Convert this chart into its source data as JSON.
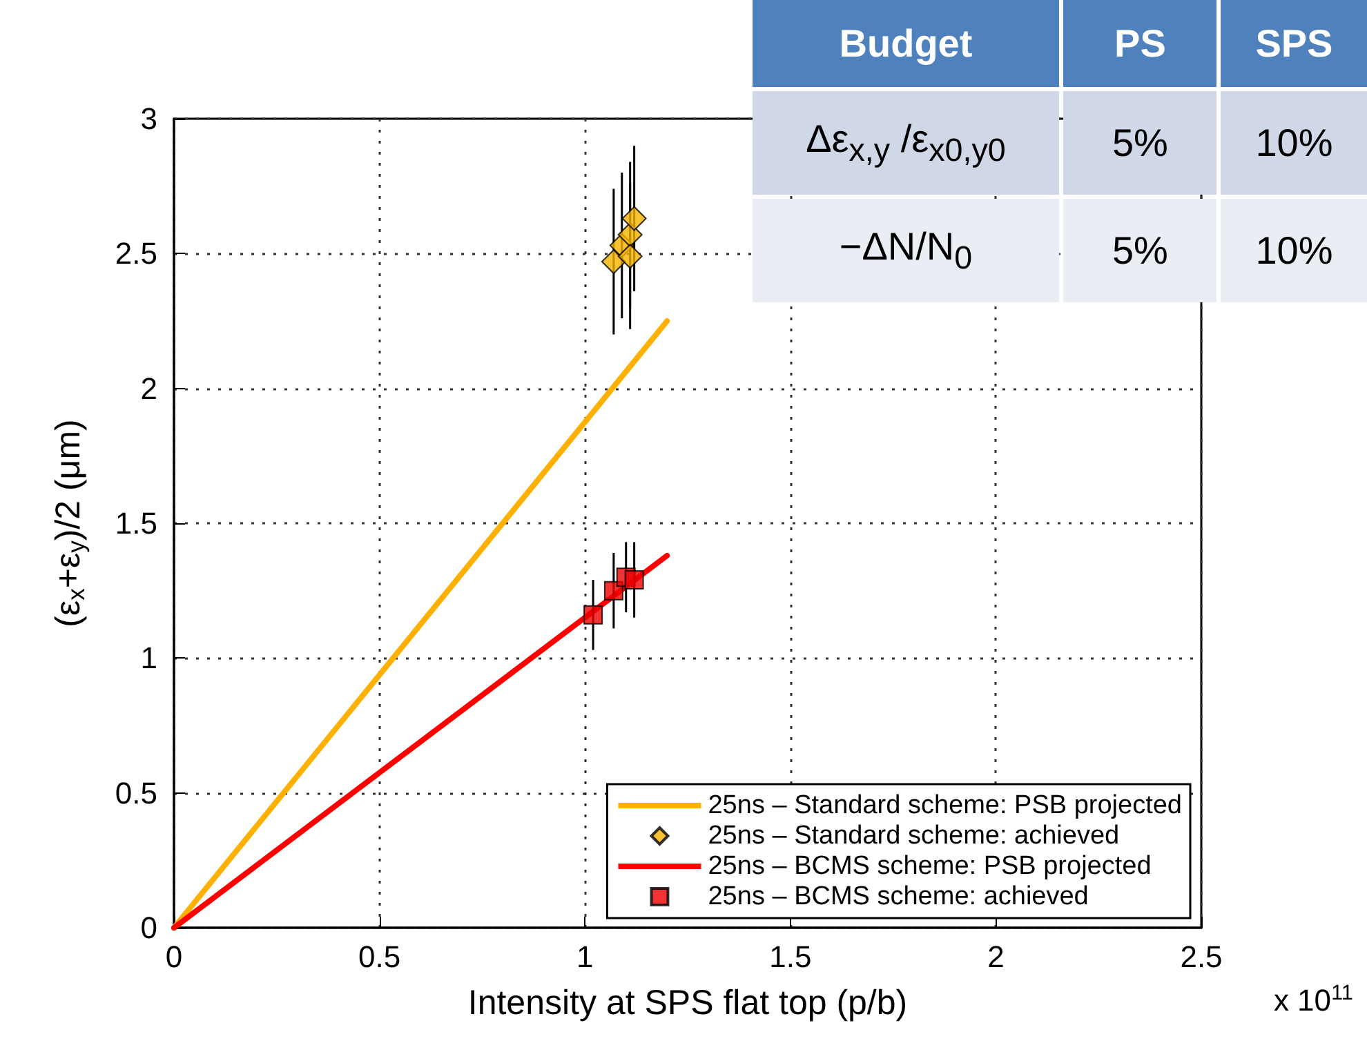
{
  "chart_data": [
    {
      "type": "scatter",
      "xlabel": "Intensity at SPS flat top (p/b)",
      "ylabel": "(ε$_{x}$+ε$_{y}$)/2 (μm)",
      "annotations": [
        "x 10$^{11}$"
      ],
      "xlim": [
        0,
        2.5
      ],
      "xticks": [
        0,
        0.5,
        1,
        1.5,
        2,
        2.5
      ],
      "ylim": [
        0,
        3
      ],
      "yticks": [
        0,
        0.5,
        1,
        1.5,
        2,
        2.5,
        3
      ],
      "grid": true,
      "legend": "bottom right",
      "series": [
        {
          "name": "25ns – Standard scheme: PSB projected",
          "type": "line",
          "color": "#ffb000",
          "x": [
            0,
            1.2
          ],
          "values": [
            0,
            2.25
          ]
        },
        {
          "name": "25ns – Standard scheme: achieved",
          "type": "scatter",
          "marker": "diamond",
          "color": "#f5b400",
          "x": [
            1.07,
            1.09,
            1.11,
            1.12,
            1.11
          ],
          "values": [
            2.47,
            2.53,
            2.57,
            2.63,
            2.49
          ],
          "errors": [
            0.27,
            0.27,
            0.27,
            0.27,
            0.27
          ]
        },
        {
          "name": "25ns – BCMS scheme: PSB projected",
          "type": "line",
          "color": "#ff0000",
          "x": [
            0,
            1.2
          ],
          "values": [
            0,
            1.38
          ]
        },
        {
          "name": "25ns – BCMS scheme: achieved",
          "type": "scatter",
          "marker": "square",
          "color": "#ee0000",
          "x": [
            1.02,
            1.07,
            1.1,
            1.12
          ],
          "values": [
            1.16,
            1.25,
            1.3,
            1.29
          ],
          "errors": [
            0.13,
            0.14,
            0.13,
            0.14
          ]
        }
      ]
    },
    {
      "type": "other",
      "annotations": [
        "Budget",
        "PS",
        "SPS",
        "Δε$_{x,y}$ /ε$_{x0,y0}$",
        "5%",
        "10%",
        "−ΔN/N$_{0}$",
        "5%",
        "10%"
      ]
    }
  ]
}
